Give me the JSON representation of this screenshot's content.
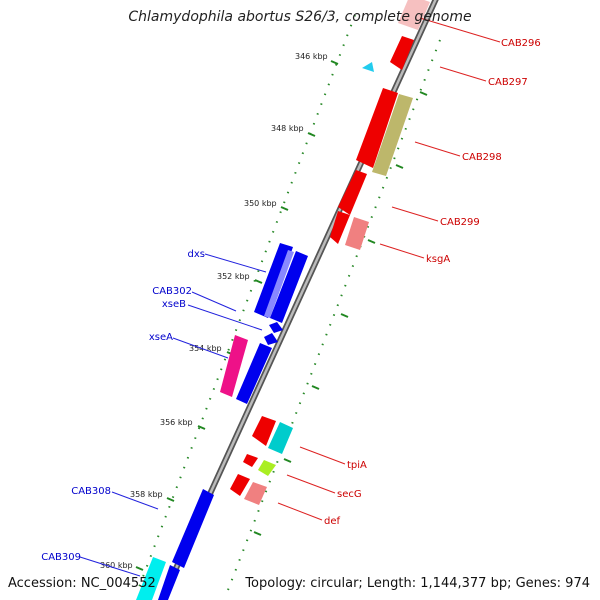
{
  "title": "Chlamydophila abortus S26/3, complete genome",
  "accession": "Accession: NC_004552",
  "summary": "Topology: circular; Length: 1,144,377 bp; Genes: 974",
  "ticks": [
    "346 kbp",
    "348 kbp",
    "350 kbp",
    "352 kbp",
    "354 kbp",
    "356 kbp",
    "358 kbp",
    "360 kbp"
  ],
  "genes_right": [
    "CAB296",
    "CAB297",
    "CAB298",
    "CAB299",
    "ksgA",
    "tpiA",
    "secG",
    "def"
  ],
  "genes_left": [
    "dxs",
    "CAB302",
    "xseB",
    "xseA",
    "CAB308",
    "CAB309"
  ],
  "colors": {
    "red": "#ee0000",
    "pink": "#f08080",
    "olive": "#bdb76b",
    "blue": "#0000ee",
    "lightblue": "#8888ff",
    "magenta": "#ee1188",
    "cyan": "#00cccc",
    "lime": "#aaee22",
    "tick": "#228822",
    "backbone": "#888888"
  }
}
